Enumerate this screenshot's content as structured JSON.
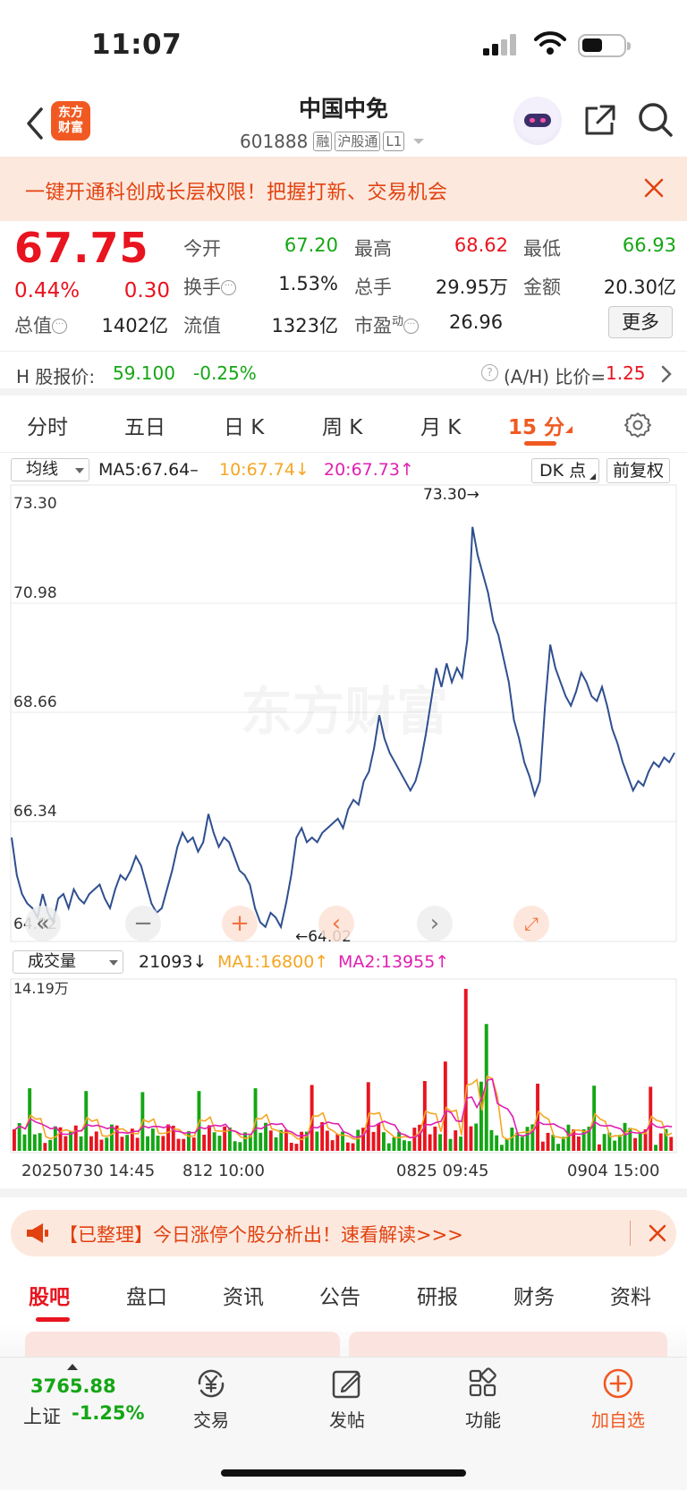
{
  "status_bar": {
    "time": "11:07"
  },
  "header": {
    "logo_line1": "东方",
    "logo_line2": "财富",
    "stock_name": "中国中免",
    "stock_code": "601888",
    "tags": [
      "融",
      "沪股通",
      "L1"
    ]
  },
  "promo": {
    "text": "一键开通科创成长层权限！把握打新、交易机会"
  },
  "quote": {
    "price": "67.75",
    "pct_change": "0.44%",
    "abs_change": "0.30",
    "open_label": "今开",
    "open": "67.20",
    "high_label": "最高",
    "high": "68.62",
    "low_label": "最低",
    "low": "66.93",
    "turnover_label": "换手",
    "turnover": "1.53%",
    "volume_label": "总手",
    "volume": "29.95万",
    "amount_label": "金额",
    "amount": "20.30亿",
    "mcap_label": "总值",
    "mcap": "1402亿",
    "float_label": "流值",
    "float_cap": "1323亿",
    "pe_label": "市盈",
    "pe_sup": "动",
    "pe": "26.96",
    "more_label": "更多"
  },
  "hk": {
    "label": "H 股报价:",
    "price": "59.100",
    "pct": "-0.25%",
    "ah_label": "(A/H) 比价=",
    "ah_value": "1.25"
  },
  "period_tabs": [
    "分时",
    "五日",
    "日 K",
    "周 K",
    "月 K",
    "15 分"
  ],
  "active_period": 5,
  "ma_legend": {
    "select": "均线",
    "ma5": "MA5:67.64–",
    "ma10": "10:67.74↓",
    "ma20": "20:67.73↑",
    "dk_label": "DK 点",
    "fq_label": "前复权"
  },
  "chart_data": {
    "type": "line",
    "ylim": [
      64.02,
      73.3
    ],
    "y_ticks": [
      "73.30",
      "70.98",
      "68.66",
      "66.34",
      "64.02"
    ],
    "max_label": "73.30→",
    "min_label": "←64.02",
    "watermark": "东方财富",
    "x_dates": [
      "20250730 14:45",
      "812 10:00",
      "0825 09:45",
      "0904 15:00"
    ],
    "price_series": [
      66.0,
      65.2,
      64.8,
      64.6,
      64.5,
      64.3,
      64.8,
      64.4,
      64.2,
      64.7,
      64.8,
      64.5,
      64.9,
      64.7,
      64.6,
      64.8,
      64.9,
      65.0,
      64.7,
      64.5,
      64.9,
      65.2,
      65.1,
      65.3,
      65.6,
      65.4,
      65.0,
      64.6,
      64.4,
      64.5,
      64.9,
      65.3,
      65.8,
      66.1,
      65.9,
      66.0,
      65.7,
      65.9,
      66.5,
      66.1,
      65.8,
      66.0,
      65.9,
      65.6,
      65.3,
      65.2,
      65.0,
      64.5,
      64.2,
      64.1,
      64.4,
      64.3,
      64.1,
      64.6,
      65.2,
      66.0,
      66.2,
      65.9,
      66.0,
      65.9,
      66.1,
      66.2,
      66.3,
      66.4,
      66.2,
      66.6,
      66.8,
      66.7,
      67.2,
      67.4,
      67.9,
      68.6,
      68.1,
      67.8,
      67.6,
      67.4,
      67.2,
      67.0,
      67.2,
      67.6,
      68.2,
      68.9,
      69.6,
      69.2,
      69.7,
      69.3,
      69.6,
      69.4,
      70.2,
      72.6,
      72.0,
      71.6,
      71.2,
      70.6,
      70.3,
      69.8,
      69.3,
      68.5,
      68.1,
      67.6,
      67.3,
      66.9,
      67.2,
      68.8,
      70.1,
      69.6,
      69.3,
      69.0,
      68.8,
      69.1,
      69.5,
      69.3,
      69.0,
      68.9,
      69.2,
      68.8,
      68.3,
      68.0,
      67.6,
      67.3,
      67.0,
      67.2,
      67.1,
      67.4,
      67.6,
      67.5,
      67.7,
      67.6,
      67.8
    ],
    "volume_label": "成交量",
    "volume_max_label": "14.19万",
    "volume_value": "21093↓",
    "volume_ma1": "MA1:16800↑",
    "volume_ma2": "MA2:13955↑",
    "volume_ylim": [
      0,
      141900
    ]
  },
  "news": {
    "text": "【已整理】今日涨停个股分析出！速看解读>>>"
  },
  "bottom_tabs": [
    "股吧",
    "盘口",
    "资讯",
    "公告",
    "研报",
    "财务",
    "资料"
  ],
  "bottom_nav": {
    "index_value": "3765.88",
    "index_name": "上证",
    "index_pct": "-1.25%",
    "items": [
      "交易",
      "发帖",
      "功能",
      "加自选"
    ]
  },
  "colors": {
    "up": "#e8141f",
    "down": "#14a614",
    "accent": "#f05a22",
    "price_line": "#2f4f8f",
    "ma1": "#f5a623",
    "ma2": "#e020b0"
  }
}
